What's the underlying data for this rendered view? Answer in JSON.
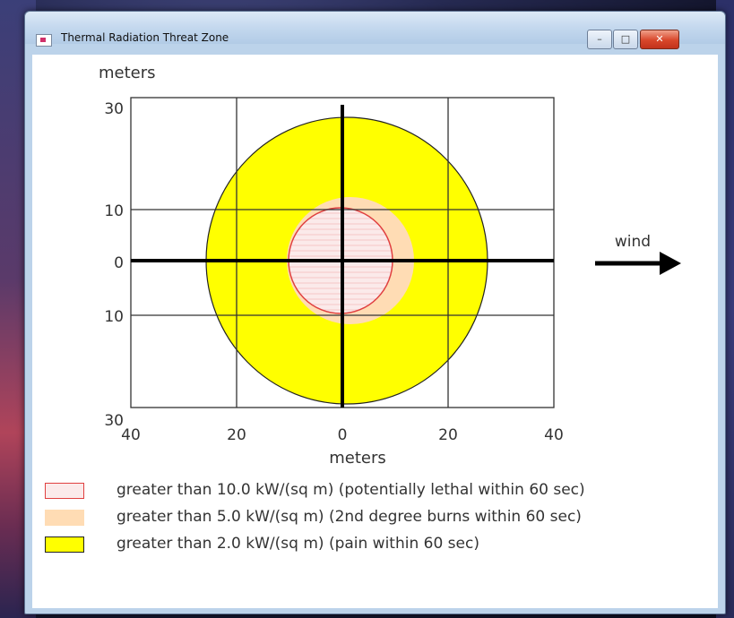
{
  "window": {
    "title": "Thermal Radiation Threat Zone",
    "controls": {
      "minimize": "–",
      "maximize": "□",
      "close": "✕"
    }
  },
  "plot": {
    "y_unit": "meters",
    "x_unit": "meters",
    "y_ticks": [
      "30",
      "10",
      "0",
      "10",
      "30"
    ],
    "x_ticks": [
      "40",
      "20",
      "0",
      "20",
      "40"
    ],
    "wind_label": "wind"
  },
  "legend": [
    {
      "label": "greater than 10.0 kW/(sq m) (potentially lethal within 60 sec)",
      "fill": "#fbeaea",
      "stroke": "#e04040"
    },
    {
      "label": "greater than 5.0 kW/(sq m) (2nd degree burns within 60 sec)",
      "fill": "#ffdcb4",
      "stroke": "#ffdcb4"
    },
    {
      "label": "greater than 2.0 kW/(sq m) (pain within 60 sec)",
      "fill": "#ffff00",
      "stroke": "#222222"
    }
  ],
  "colors": {
    "pain_zone": "#ffff00",
    "burn_zone": "#ffdcb4",
    "lethal_zone": "#fbeaea",
    "lethal_outline": "#e04040"
  }
}
